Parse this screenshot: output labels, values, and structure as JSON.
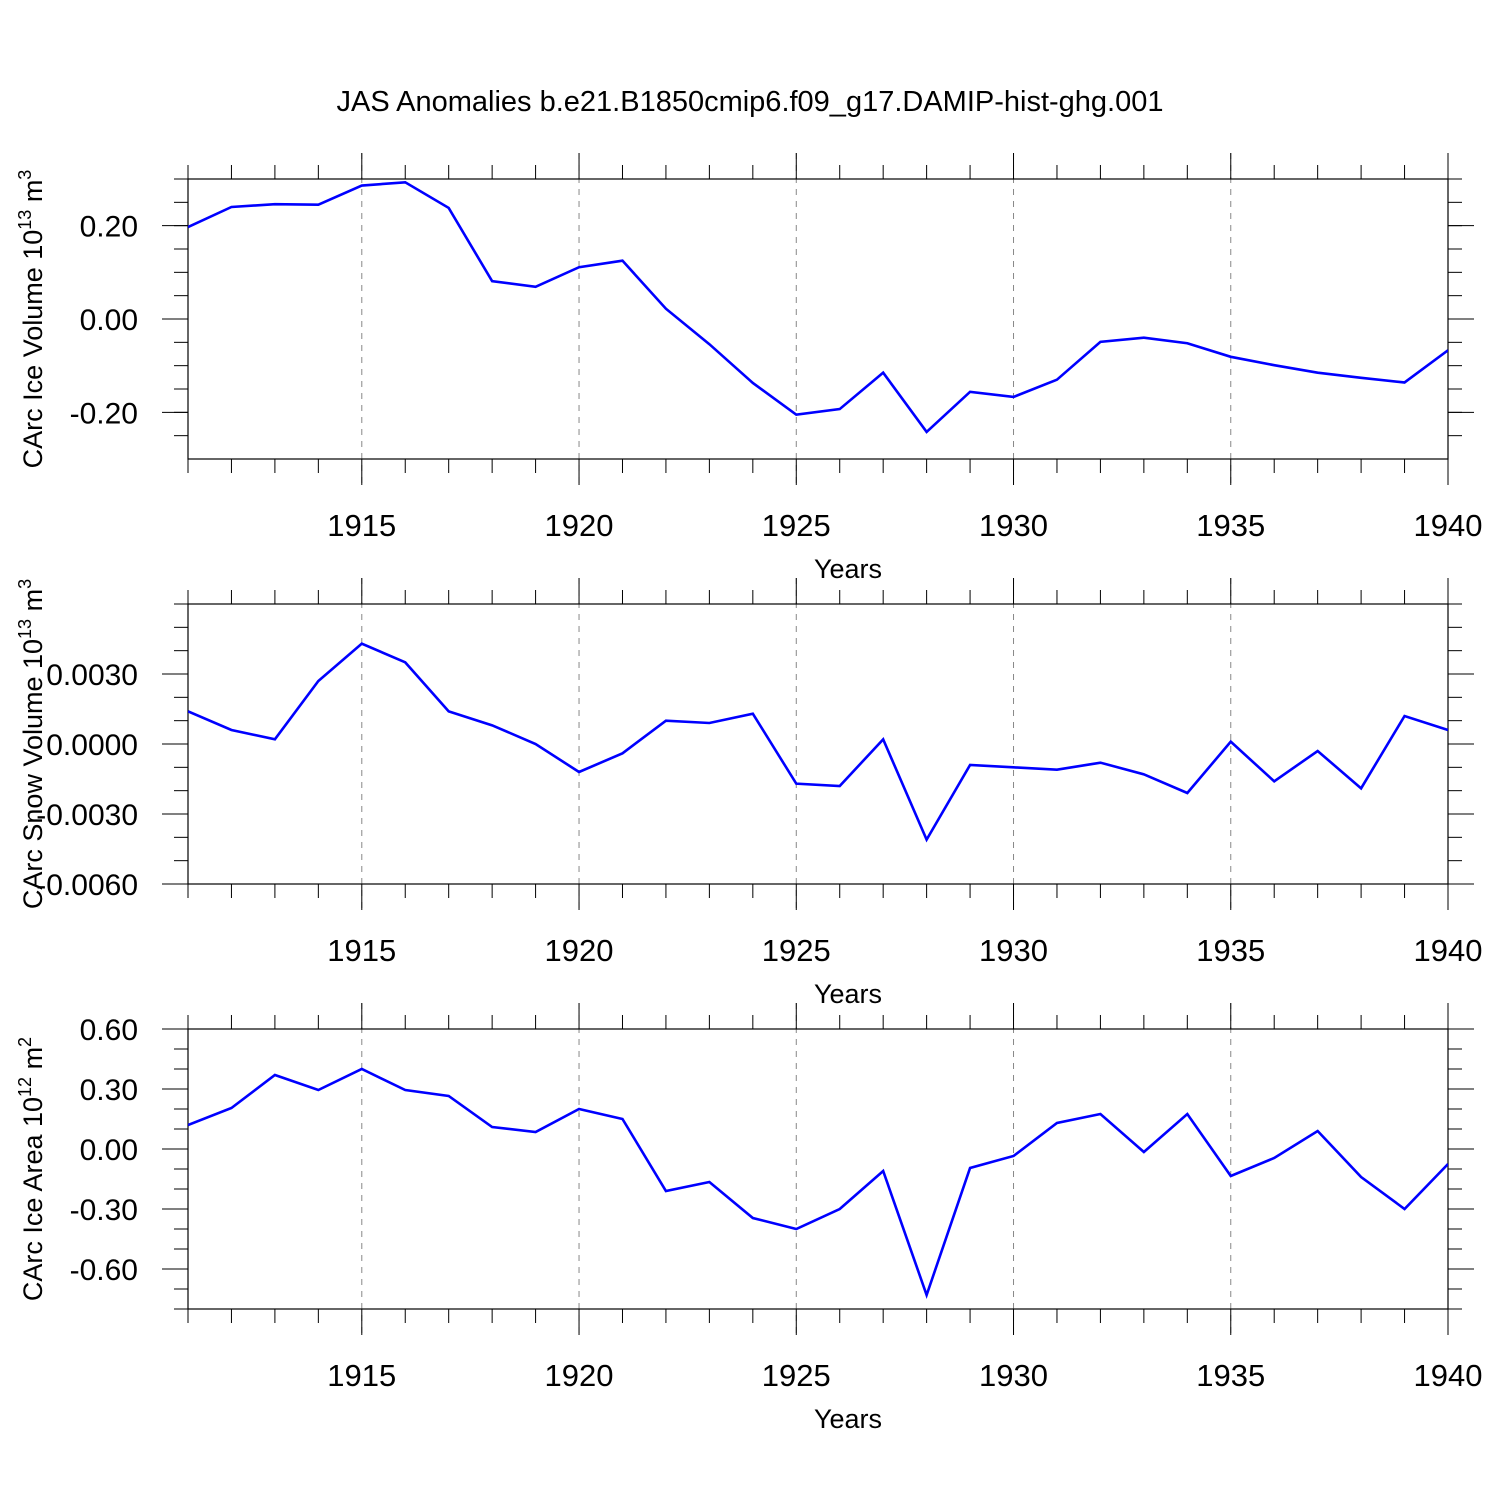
{
  "title": "JAS Anomalies b.e21.B1850cmip6.f09_g17.DAMIP-hist-ghg.001",
  "colors": {
    "line": "#0000ff",
    "axis": "#000000",
    "grid": "#888888"
  },
  "chart_data": [
    {
      "type": "line",
      "title": "",
      "xlabel": "Years",
      "ylabel": {
        "text": "CArc Ice Volume 10",
        "sup": "13",
        "suffix": " m",
        "sup2": "3"
      },
      "xlim": [
        1911,
        1940
      ],
      "ylim": [
        -0.3,
        0.3
      ],
      "xticks": [
        1915,
        1920,
        1925,
        1930,
        1935,
        1940
      ],
      "yticks": [
        -0.2,
        0.0,
        0.2
      ],
      "ytick_labels": [
        "-0.20",
        "0.00",
        "0.20"
      ],
      "yminor": 0.05,
      "gridlines_x": [
        1915,
        1920,
        1925,
        1930,
        1935
      ],
      "x": [
        1911,
        1912,
        1913,
        1914,
        1915,
        1916,
        1917,
        1918,
        1919,
        1920,
        1921,
        1922,
        1923,
        1924,
        1925,
        1926,
        1927,
        1928,
        1929,
        1930,
        1931,
        1932,
        1933,
        1934,
        1935,
        1936,
        1937,
        1938,
        1939,
        1940
      ],
      "series": [
        {
          "name": "CArc Ice Volume",
          "values": [
            0.197,
            0.24,
            0.246,
            0.245,
            0.286,
            0.293,
            0.238,
            0.081,
            0.069,
            0.111,
            0.125,
            0.022,
            -0.054,
            -0.137,
            -0.205,
            -0.193,
            -0.115,
            -0.242,
            -0.156,
            -0.167,
            -0.13,
            -0.049,
            -0.04,
            -0.052,
            -0.081,
            -0.099,
            -0.115,
            -0.126,
            -0.136,
            -0.067
          ]
        }
      ]
    },
    {
      "type": "line",
      "title": "",
      "xlabel": "Years",
      "ylabel": {
        "text": "CArc Snow Volume 10",
        "sup": "13",
        "suffix": " m",
        "sup2": "3"
      },
      "xlim": [
        1911,
        1940
      ],
      "ylim": [
        -0.006,
        0.006
      ],
      "xticks": [
        1915,
        1920,
        1925,
        1930,
        1935,
        1940
      ],
      "yticks": [
        -0.006,
        -0.003,
        0.0,
        0.003
      ],
      "ytick_labels": [
        "-0.0060",
        "-0.0030",
        "0.0000",
        "0.0030"
      ],
      "yminor": 0.001,
      "gridlines_x": [
        1915,
        1920,
        1925,
        1930,
        1935
      ],
      "x": [
        1911,
        1912,
        1913,
        1914,
        1915,
        1916,
        1917,
        1918,
        1919,
        1920,
        1921,
        1922,
        1923,
        1924,
        1925,
        1926,
        1927,
        1928,
        1929,
        1930,
        1931,
        1932,
        1933,
        1934,
        1935,
        1936,
        1937,
        1938,
        1939,
        1940
      ],
      "series": [
        {
          "name": "CArc Snow Volume",
          "values": [
            0.0014,
            0.0006,
            0.0002,
            0.0027,
            0.0043,
            0.0035,
            0.0014,
            0.0008,
            0.0,
            -0.0012,
            -0.0004,
            0.001,
            0.0009,
            0.0013,
            -0.0017,
            -0.0018,
            0.0002,
            -0.0041,
            -0.0009,
            -0.001,
            -0.0011,
            -0.0008,
            -0.0013,
            -0.0021,
            0.0001,
            -0.0016,
            -0.0003,
            -0.0019,
            0.0012,
            0.0006
          ]
        }
      ]
    },
    {
      "type": "line",
      "title": "",
      "xlabel": "Years",
      "ylabel": {
        "text": "CArc Ice Area 10",
        "sup": "12",
        "suffix": " m",
        "sup2": "2"
      },
      "xlim": [
        1911,
        1940
      ],
      "ylim": [
        -0.8,
        0.6
      ],
      "xticks": [
        1915,
        1920,
        1925,
        1930,
        1935,
        1940
      ],
      "yticks": [
        -0.6,
        -0.3,
        0.0,
        0.3,
        0.6
      ],
      "ytick_labels": [
        "-0.60",
        "-0.30",
        "0.00",
        "0.30",
        "0.60"
      ],
      "yminor": 0.1,
      "gridlines_x": [
        1915,
        1920,
        1925,
        1930,
        1935
      ],
      "x": [
        1911,
        1912,
        1913,
        1914,
        1915,
        1916,
        1917,
        1918,
        1919,
        1920,
        1921,
        1922,
        1923,
        1924,
        1925,
        1926,
        1927,
        1928,
        1929,
        1930,
        1931,
        1932,
        1933,
        1934,
        1935,
        1936,
        1937,
        1938,
        1939,
        1940
      ],
      "series": [
        {
          "name": "CArc Ice Area",
          "values": [
            0.12,
            0.205,
            0.37,
            0.295,
            0.4,
            0.295,
            0.265,
            0.11,
            0.085,
            0.2,
            0.15,
            -0.21,
            -0.165,
            -0.345,
            -0.4,
            -0.3,
            -0.11,
            -0.73,
            -0.095,
            -0.035,
            0.13,
            0.175,
            -0.015,
            0.175,
            -0.135,
            -0.045,
            0.09,
            -0.14,
            -0.3,
            -0.075
          ]
        }
      ]
    }
  ]
}
